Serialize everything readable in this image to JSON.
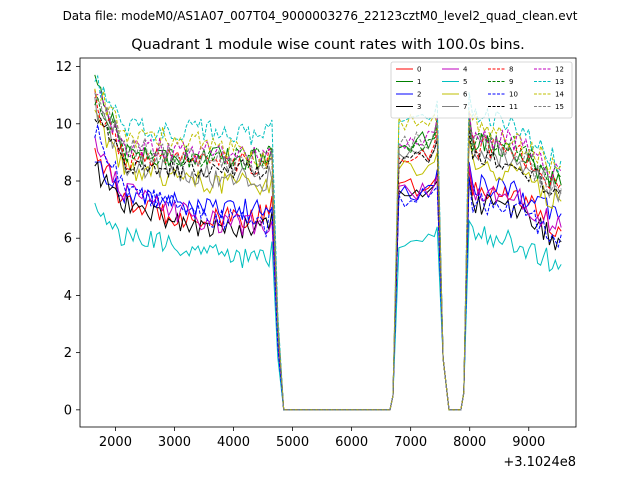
{
  "figure": {
    "suptitle": "Data file: modeM0/AS1A07_007T04_9000003276_22123cztM0_level2_quad_clean.evt"
  },
  "chart_data": {
    "type": "line",
    "title": "Quadrant 1 module wise count rates with 100.0s bins.",
    "xlabel": "",
    "ylabel": "",
    "x_offset_label": "+3.1024e8",
    "xlim": [
      1400,
      9800
    ],
    "ylim": [
      -0.6,
      12.3
    ],
    "xticks": [
      2000,
      3000,
      4000,
      5000,
      6000,
      7000,
      8000,
      9000
    ],
    "xtick_labels": [
      "2000",
      "3000",
      "4000",
      "5000",
      "6000",
      "7000",
      "8000",
      "9000"
    ],
    "yticks": [
      0,
      2,
      4,
      6,
      8,
      10,
      12
    ],
    "ytick_labels": [
      "0",
      "2",
      "4",
      "6",
      "8",
      "10",
      "12"
    ],
    "grid": false,
    "legend_position": "top-right",
    "legend_columns": 4,
    "bin_size": 100,
    "x_start": 1650,
    "segments": [
      {
        "x_start": 1650,
        "x_end": 4750,
        "kind": "active"
      },
      {
        "x_start": 4850,
        "x_end": 6650,
        "kind": "zero"
      },
      {
        "x_start": 6750,
        "x_end": 7450,
        "kind": "active"
      },
      {
        "x_start": 7550,
        "x_end": 7550,
        "kind": "drop"
      },
      {
        "x_start": 7650,
        "x_end": 7850,
        "kind": "zero"
      },
      {
        "x_start": 7950,
        "x_end": 9550,
        "kind": "active"
      }
    ],
    "series": [
      {
        "name": "0",
        "color": "#ff0000",
        "dash": "solid",
        "levels": [
          9.2,
          7.2,
          6.6,
          6.8,
          7.8,
          7.6,
          8.0,
          7.6,
          7.6,
          6.2
        ]
      },
      {
        "name": "1",
        "color": "#008000",
        "dash": "solid",
        "levels": [
          11.7,
          9.0,
          8.8,
          8.8,
          9.4,
          9.6,
          9.8,
          9.5,
          9.0,
          7.8
        ]
      },
      {
        "name": "2",
        "color": "#0000ff",
        "dash": "solid",
        "levels": [
          8.6,
          7.6,
          7.0,
          7.0,
          7.6,
          7.8,
          8.4,
          7.9,
          7.6,
          6.8
        ]
      },
      {
        "name": "3",
        "color": "#000000",
        "dash": "solid",
        "levels": [
          8.4,
          7.2,
          6.3,
          6.4,
          7.6,
          7.4,
          7.8,
          7.2,
          7.0,
          5.8
        ]
      },
      {
        "name": "4",
        "color": "#bf00bf",
        "dash": "solid",
        "levels": [
          9.4,
          7.6,
          6.6,
          6.4,
          7.6,
          7.6,
          8.2,
          7.6,
          7.4,
          6.3
        ]
      },
      {
        "name": "5",
        "color": "#00bfbf",
        "dash": "solid",
        "levels": [
          7.0,
          6.0,
          5.6,
          5.2,
          5.8,
          5.8,
          6.2,
          6.2,
          5.8,
          5.0
        ]
      },
      {
        "name": "6",
        "color": "#bfbf00",
        "dash": "solid",
        "levels": [
          10.2,
          8.4,
          8.0,
          7.8,
          8.4,
          8.4,
          9.0,
          8.6,
          8.2,
          7.2
        ]
      },
      {
        "name": "7",
        "color": "#808080",
        "dash": "solid",
        "levels": [
          10.6,
          8.6,
          8.2,
          8.0,
          8.8,
          9.0,
          9.4,
          9.0,
          8.8,
          7.6
        ]
      },
      {
        "name": "8",
        "color": "#ff0000",
        "dash": "dashed",
        "levels": [
          10.8,
          8.8,
          8.6,
          8.6,
          9.0,
          9.2,
          9.6,
          9.2,
          9.0,
          7.8
        ]
      },
      {
        "name": "9",
        "color": "#008000",
        "dash": "dashed",
        "levels": [
          11.0,
          9.0,
          8.8,
          8.8,
          9.2,
          9.4,
          9.8,
          9.4,
          9.2,
          8.0
        ]
      },
      {
        "name": "10",
        "color": "#0000ff",
        "dash": "dashed",
        "levels": [
          9.8,
          7.8,
          6.8,
          6.4,
          7.4,
          7.2,
          7.8,
          7.2,
          7.0,
          6.0
        ]
      },
      {
        "name": "11",
        "color": "#000000",
        "dash": "dashed",
        "levels": [
          10.4,
          8.6,
          8.4,
          8.4,
          8.8,
          8.8,
          9.4,
          9.0,
          8.6,
          7.6
        ]
      },
      {
        "name": "12",
        "color": "#bf00bf",
        "dash": "dashed",
        "levels": [
          11.2,
          9.2,
          9.0,
          8.8,
          9.4,
          9.6,
          10.0,
          9.6,
          9.4,
          8.2
        ]
      },
      {
        "name": "13",
        "color": "#00bfbf",
        "dash": "dashed",
        "levels": [
          11.6,
          9.8,
          9.8,
          9.6,
          10.0,
          10.2,
          10.6,
          10.4,
          9.8,
          8.6
        ]
      },
      {
        "name": "14",
        "color": "#bfbf00",
        "dash": "dashed",
        "levels": [
          11.3,
          9.6,
          9.4,
          8.6,
          10.0,
          9.4,
          10.2,
          10.2,
          9.4,
          8.4
        ]
      },
      {
        "name": "15",
        "color": "#808080",
        "dash": "dashed",
        "levels": [
          11.1,
          9.2,
          8.8,
          8.4,
          9.4,
          9.4,
          9.8,
          9.4,
          9.0,
          7.4
        ]
      }
    ]
  }
}
